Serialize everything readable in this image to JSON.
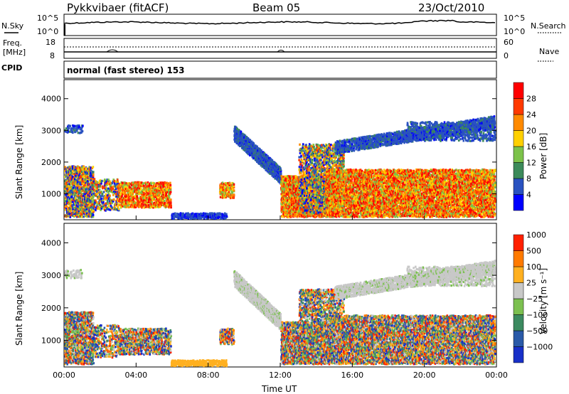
{
  "header": {
    "station": "Pykkvibaer (fitACF)",
    "beam": "Beam 05",
    "date": "23/Oct/2010"
  },
  "aux": {
    "nsky_label": "N.Sky",
    "nsearch_label": "N.Search",
    "freq_label_1": "Freq.",
    "freq_label_2": "[MHz]",
    "nave_label": "Nave",
    "cpid_label": "CPID",
    "cpid_text": "normal (fast stereo) 153",
    "noise_ticks_left": [
      "10^5",
      "10^0"
    ],
    "noise_ticks_right": [
      "10^5",
      "10^0"
    ],
    "freq_ticks_left": [
      "18",
      "8"
    ],
    "nave_ticks_right": [
      "60",
      "0"
    ]
  },
  "chart_data": [
    {
      "type": "heatmap",
      "name": "power",
      "ylabel": "Slant Range [km]",
      "xlabel": "",
      "ylim": [
        180,
        4600
      ],
      "xlim": [
        0,
        24
      ],
      "y_ticks": [
        1000,
        2000,
        3000,
        4000
      ],
      "colorbar": {
        "label": "Power [dB]",
        "ticks": [
          4,
          8,
          12,
          16,
          20,
          24,
          28
        ],
        "range": [
          0,
          32
        ],
        "colors": [
          "#0000ff",
          "#2a52c0",
          "#3c8a5a",
          "#7cc24a",
          "#ffd000",
          "#ff8a00",
          "#ff3a00",
          "#ff0000"
        ]
      }
    },
    {
      "type": "heatmap",
      "name": "velocity",
      "ylabel": "Slant Range [km]",
      "xlabel": "Time UT",
      "ylim": [
        180,
        4600
      ],
      "xlim": [
        0,
        24
      ],
      "y_ticks": [
        1000,
        2000,
        3000,
        4000
      ],
      "x_ticks": [
        "00:00",
        "04:00",
        "08:00",
        "12:00",
        "16:00",
        "20:00",
        "00:00"
      ],
      "colorbar": {
        "label": "Velocity [m s⁻¹]",
        "ticks": [
          "1000",
          "500",
          "100",
          "25",
          "−25",
          "−100",
          "−500",
          "−1000"
        ],
        "colors": [
          "#1830c8",
          "#2a5aa8",
          "#3c8a60",
          "#7cc050",
          "#c8c8c8",
          "#ffb020",
          "#ff7a00",
          "#ff2000"
        ]
      }
    }
  ]
}
